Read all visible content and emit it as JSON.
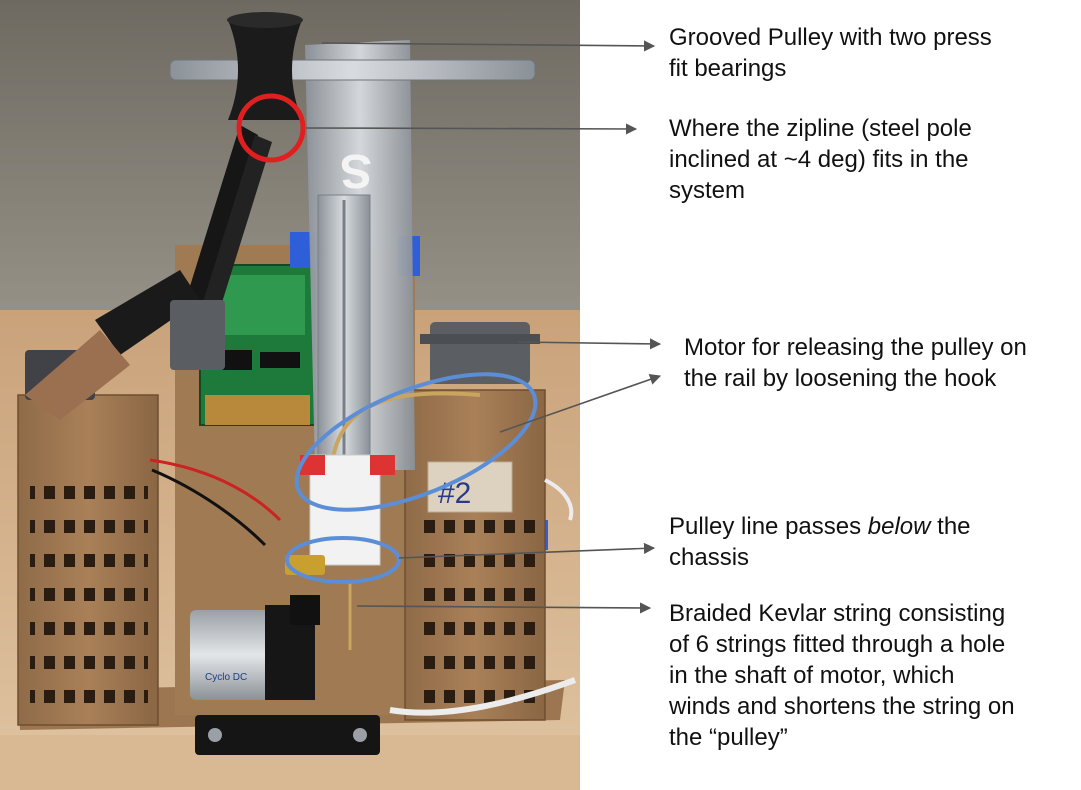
{
  "colors": {
    "arrow": "#555555",
    "highlight_red": "#e02020",
    "highlight_blue": "#5b8ed6",
    "wood": "#a27a52",
    "text": "#111111"
  },
  "annotations": [
    {
      "id": "pulley",
      "lines": [
        "Grooved Pulley with two press",
        "fit bearings"
      ]
    },
    {
      "id": "zipline",
      "lines": [
        "Where the zipline (steel pole",
        "inclined at ~4 deg) fits in the",
        "system"
      ]
    },
    {
      "id": "motor-release",
      "lines": [
        "Motor for releasing the pulley on",
        "the rail by loosening the hook"
      ]
    },
    {
      "id": "pulley-line",
      "line1_pre": "Pulley line passes ",
      "line1_em": "below",
      "line1_post": " the",
      "line2": "chassis"
    },
    {
      "id": "kevlar",
      "lines": [
        "Braided Kevlar string consisting",
        "of 6 strings fitted through a hole",
        "in the shaft of motor, which",
        "winds and shortens the string on",
        "the “pulley”"
      ]
    }
  ],
  "photo_labels": {
    "tower_tag": "#2",
    "motor_brand": "Cyclo DC"
  }
}
